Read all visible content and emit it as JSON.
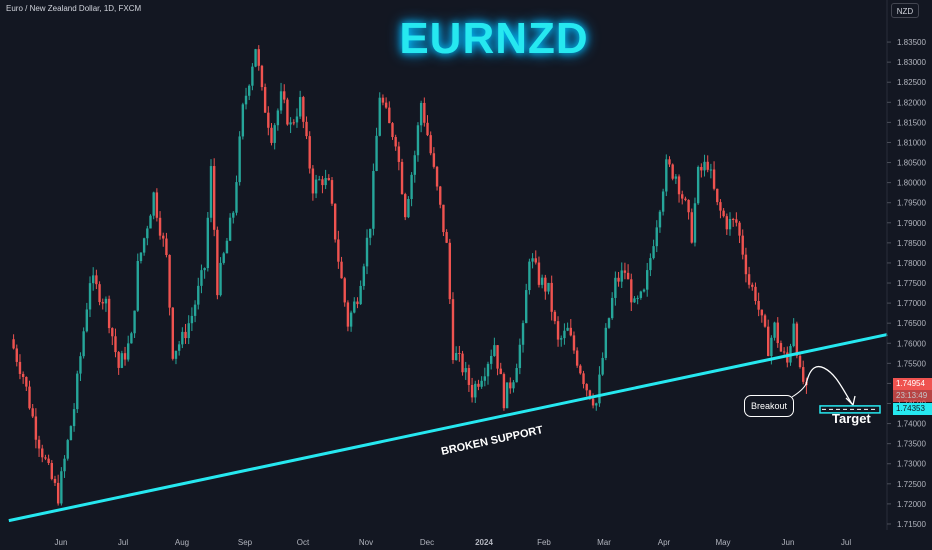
{
  "header": {
    "symbol_info": "Euro / New Zealand Dollar, 1D, FXCM",
    "currency": "NZD"
  },
  "title": "EURNZD",
  "annotations": {
    "support_label": "BROKEN SUPPORT",
    "breakout_label": "Breakout",
    "target_label": "Target"
  },
  "price_tags": {
    "current": "1.74954",
    "current_sub": "23:13:49",
    "target": "1.74353"
  },
  "colors": {
    "background": "#131722",
    "up": "#26a69a",
    "down": "#ef5350",
    "support": "#26e8f0",
    "title": "#26e8f0"
  },
  "chart_data": {
    "type": "candlestick",
    "title": "EURNZD",
    "xlabel": "",
    "ylabel": "",
    "x_ticks": [
      "Jun",
      "Jul",
      "Aug",
      "Sep",
      "Oct",
      "Nov",
      "Dec",
      "2024",
      "Feb",
      "Mar",
      "Apr",
      "May",
      "Jun",
      "Jul"
    ],
    "y_ticks": [
      "1.83500",
      "1.83000",
      "1.82500",
      "1.82000",
      "1.81500",
      "1.81000",
      "1.80500",
      "1.80000",
      "1.79500",
      "1.79000",
      "1.78500",
      "1.78000",
      "1.77500",
      "1.77000",
      "1.76500",
      "1.76000",
      "1.75500",
      "1.75000",
      "1.74500",
      "1.74000",
      "1.73500",
      "1.73000",
      "1.72500",
      "1.72000",
      "1.71500"
    ],
    "ylim": [
      1.7135,
      1.839
    ],
    "close_path": [
      [
        0,
        1.761
      ],
      [
        4,
        1.752
      ],
      [
        8,
        1.738
      ],
      [
        12,
        1.728
      ],
      [
        15,
        1.722
      ],
      [
        20,
        1.744
      ],
      [
        25,
        1.776
      ],
      [
        30,
        1.77
      ],
      [
        34,
        1.754
      ],
      [
        38,
        1.761
      ],
      [
        40,
        1.779
      ],
      [
        45,
        1.797
      ],
      [
        49,
        1.781
      ],
      [
        51,
        1.758
      ],
      [
        54,
        1.761
      ],
      [
        57,
        1.767
      ],
      [
        61,
        1.779
      ],
      [
        63,
        1.803
      ],
      [
        65,
        1.774
      ],
      [
        70,
        1.793
      ],
      [
        73,
        1.818
      ],
      [
        77,
        1.834
      ],
      [
        79,
        1.822
      ],
      [
        82,
        1.812
      ],
      [
        85,
        1.821
      ],
      [
        88,
        1.814
      ],
      [
        91,
        1.82
      ],
      [
        95,
        1.799
      ],
      [
        98,
        1.801
      ],
      [
        100,
        1.799
      ],
      [
        103,
        1.781
      ],
      [
        106,
        1.765
      ],
      [
        109,
        1.772
      ],
      [
        113,
        1.79
      ],
      [
        116,
        1.822
      ],
      [
        119,
        1.814
      ],
      [
        121,
        1.811
      ],
      [
        124,
        1.793
      ],
      [
        127,
        1.807
      ],
      [
        129,
        1.82
      ],
      [
        131,
        1.812
      ],
      [
        134,
        1.798
      ],
      [
        137,
        1.784
      ],
      [
        139,
        1.758
      ],
      [
        142,
        1.754
      ],
      [
        145,
        1.748
      ],
      [
        149,
        1.754
      ],
      [
        152,
        1.76
      ],
      [
        155,
        1.746
      ],
      [
        158,
        1.752
      ],
      [
        161,
        1.763
      ],
      [
        163,
        1.782
      ],
      [
        166,
        1.776
      ],
      [
        169,
        1.773
      ],
      [
        172,
        1.76
      ],
      [
        175,
        1.763
      ],
      [
        178,
        1.756
      ],
      [
        181,
        1.749
      ],
      [
        184,
        1.745
      ],
      [
        187,
        1.762
      ],
      [
        190,
        1.775
      ],
      [
        193,
        1.778
      ],
      [
        196,
        1.769
      ],
      [
        199,
        1.772
      ],
      [
        202,
        1.786
      ],
      [
        206,
        1.804
      ],
      [
        209,
        1.802
      ],
      [
        212,
        1.794
      ],
      [
        214,
        1.787
      ],
      [
        216,
        1.802
      ],
      [
        219,
        1.805
      ],
      [
        222,
        1.794
      ],
      [
        225,
        1.79
      ],
      [
        228,
        1.79
      ],
      [
        230,
        1.783
      ],
      [
        232,
        1.775
      ],
      [
        234,
        1.772
      ],
      [
        236,
        1.765
      ],
      [
        238,
        1.759
      ],
      [
        240,
        1.764
      ],
      [
        242,
        1.758
      ],
      [
        244,
        1.755
      ],
      [
        246,
        1.766
      ],
      [
        248,
        1.752
      ],
      [
        250,
        1.749
      ]
    ],
    "support_line": [
      [
        1.716,
        0
      ],
      [
        1.758,
        250
      ]
    ],
    "target_price": 1.74353,
    "current_price": 1.74954
  }
}
